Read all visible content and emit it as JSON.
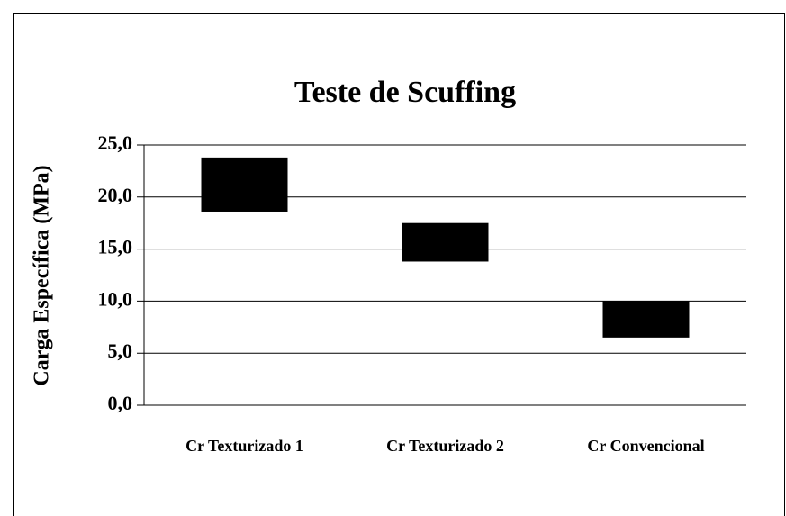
{
  "chart_data": {
    "type": "floating-bar",
    "title": "Teste de Scuffing",
    "y_label": "Carga Específica  (MPa)",
    "categories": [
      "Cr Texturizado 1",
      "Cr Texturizado 2",
      "Cr Convencional"
    ],
    "low": [
      18.6,
      13.8,
      6.5
    ],
    "high": [
      23.8,
      17.5,
      10.0
    ],
    "color": "#000000",
    "ylim": [
      0,
      25
    ],
    "yticks": [
      {
        "value": 0,
        "label": "0,0"
      },
      {
        "value": 5,
        "label": "5,0"
      },
      {
        "value": 10,
        "label": "10,0"
      },
      {
        "value": 15,
        "label": "15,0"
      },
      {
        "value": 20,
        "label": "20,0"
      },
      {
        "value": 25,
        "label": "25,0"
      }
    ],
    "grid": true
  }
}
